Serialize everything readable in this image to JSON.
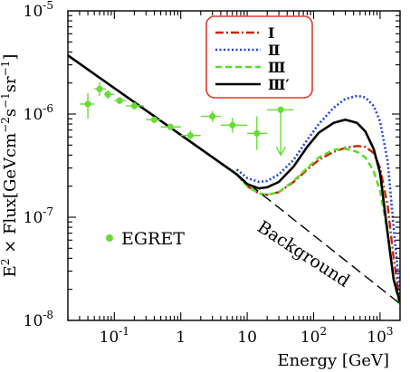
{
  "chart_data": {
    "type": "line",
    "xlabel": "Energy [GeV]",
    "ylabel": "E2 × Flux[GeVcm-2s-1sr-1]",
    "xscale": "log",
    "yscale": "log",
    "xlim": [
      0.02,
      2000
    ],
    "ylim": [
      1e-08,
      1e-05
    ],
    "x_ticks": [
      {
        "value": 0.1,
        "base": "10",
        "exp": "-1"
      },
      {
        "value": 1,
        "base": "1",
        "exp": ""
      },
      {
        "value": 10,
        "base": "10",
        "exp": ""
      },
      {
        "value": 100,
        "base": "10",
        "exp": "2"
      },
      {
        "value": 1000,
        "base": "10",
        "exp": "3"
      }
    ],
    "y_ticks": [
      {
        "value": 1e-05,
        "base": "10",
        "exp": "-5"
      },
      {
        "value": 1e-06,
        "base": "10",
        "exp": "-6"
      },
      {
        "value": 1e-07,
        "base": "10",
        "exp": "-7"
      },
      {
        "value": 1e-08,
        "base": "10",
        "exp": "-8"
      }
    ],
    "grid": false,
    "legend_position": "top-right",
    "series": [
      {
        "name": "Ⅰ",
        "color": "#cc2200",
        "dash": "dashdot",
        "x": [
          7,
          10,
          15,
          20,
          30,
          50,
          80,
          120,
          200,
          300,
          450,
          600,
          800,
          1000,
          1300,
          1600,
          2000
        ],
        "y": [
          2.6e-07,
          2e-07,
          1.7e-07,
          1.65e-07,
          1.75e-07,
          2.2e-07,
          2.9e-07,
          3.6e-07,
          4.3e-07,
          4.7e-07,
          4.9e-07,
          4.8e-07,
          4.2e-07,
          3e-07,
          1.3e-07,
          4e-08,
          1.5e-08
        ]
      },
      {
        "name": "Ⅱ",
        "color": "#2244dd",
        "dash": "dotted",
        "x": [
          7,
          10,
          15,
          20,
          30,
          50,
          80,
          120,
          200,
          300,
          450,
          600,
          800,
          1000,
          1300,
          1600,
          2000
        ],
        "y": [
          2.9e-07,
          2.4e-07,
          2.2e-07,
          2.25e-07,
          2.6e-07,
          3.6e-07,
          5.6e-07,
          8e-07,
          1.15e-06,
          1.4e-06,
          1.5e-06,
          1.45e-06,
          1.2e-06,
          8.5e-07,
          3.5e-07,
          8e-08,
          1.8e-08
        ]
      },
      {
        "name": "Ⅲ",
        "color": "#55dd22",
        "dash": "dashed",
        "x": [
          7,
          10,
          15,
          20,
          30,
          50,
          80,
          120,
          200,
          300,
          450,
          600,
          800,
          1000,
          1300,
          1600,
          2000
        ],
        "y": [
          2.6e-07,
          2e-07,
          1.7e-07,
          1.65e-07,
          1.75e-07,
          2.25e-07,
          3e-07,
          3.8e-07,
          4.5e-07,
          4.6e-07,
          4.3e-07,
          3.8e-07,
          2.8e-07,
          1.8e-07,
          7e-08,
          2.5e-08,
          1.3e-08
        ]
      },
      {
        "name": "Ⅲ′",
        "color": "#000000",
        "dash": "solid",
        "x": [
          0.02,
          7,
          10,
          15,
          20,
          30,
          50,
          80,
          120,
          200,
          300,
          450,
          600,
          800,
          1000,
          1300,
          1600,
          2000
        ],
        "y": [
          3.7e-06,
          2.6e-07,
          2.1e-07,
          1.9e-07,
          1.95e-07,
          2.2e-07,
          3.1e-07,
          4.8e-07,
          6.6e-07,
          8.2e-07,
          8.8e-07,
          8.2e-07,
          6.8e-07,
          4.6e-07,
          2.7e-07,
          7e-08,
          2.5e-08,
          1.5e-08
        ]
      },
      {
        "name": "Background",
        "color": "#000000",
        "dash": "longdash",
        "x": [
          7,
          2000
        ],
        "y": [
          2.6e-07,
          1.45e-08
        ]
      }
    ],
    "egret": {
      "name": "EGRET",
      "color": "#66dd33",
      "points": [
        {
          "x": 0.04,
          "y": 1.25e-06,
          "xlo": 0.03,
          "xhi": 0.05,
          "ylo": 9e-07,
          "yhi": 1.6e-06
        },
        {
          "x": 0.06,
          "y": 1.75e-06,
          "xlo": 0.05,
          "xhi": 0.075,
          "ylo": 1.5e-06,
          "yhi": 2.05e-06
        },
        {
          "x": 0.08,
          "y": 1.55e-06,
          "xlo": 0.07,
          "xhi": 0.1,
          "ylo": 1.4e-06,
          "yhi": 1.7e-06
        },
        {
          "x": 0.12,
          "y": 1.35e-06,
          "xlo": 0.1,
          "xhi": 0.15,
          "ylo": 1.25e-06,
          "yhi": 1.45e-06
        },
        {
          "x": 0.2,
          "y": 1.2e-06,
          "xlo": 0.15,
          "xhi": 0.28,
          "ylo": 1.1e-06,
          "yhi": 1.3e-06
        },
        {
          "x": 0.4,
          "y": 8.8e-07,
          "xlo": 0.3,
          "xhi": 0.5,
          "ylo": 8.2e-07,
          "yhi": 9.4e-07
        },
        {
          "x": 0.7,
          "y": 7.5e-07,
          "xlo": 0.5,
          "xhi": 1.0,
          "ylo": 7e-07,
          "yhi": 8e-07
        },
        {
          "x": 1.4,
          "y": 6.2e-07,
          "xlo": 1.0,
          "xhi": 2.0,
          "ylo": 5.6e-07,
          "yhi": 6.9e-07
        },
        {
          "x": 3,
          "y": 9.5e-07,
          "xlo": 2.0,
          "xhi": 4.0,
          "ylo": 8.4e-07,
          "yhi": 1.07e-06
        },
        {
          "x": 6,
          "y": 7.8e-07,
          "xlo": 4.0,
          "xhi": 10,
          "ylo": 6.6e-07,
          "yhi": 9.2e-07
        },
        {
          "x": 14,
          "y": 6.5e-07,
          "xlo": 10,
          "xhi": 20,
          "ylo": 4.5e-07,
          "yhi": 9.5e-07
        },
        {
          "x": 32,
          "y": 1.1e-06,
          "xlo": 20,
          "xhi": 50,
          "ylo": 4e-07,
          "yhi": 1.1e-06,
          "upper_limit": true
        }
      ]
    },
    "annotations": [
      {
        "text": "Background",
        "x": 90,
        "y": 3.6e-08,
        "rotate_deg": 33
      },
      {
        "text": "EGRET",
        "x": 0.08,
        "y": 5e-08,
        "marker": true
      }
    ]
  }
}
